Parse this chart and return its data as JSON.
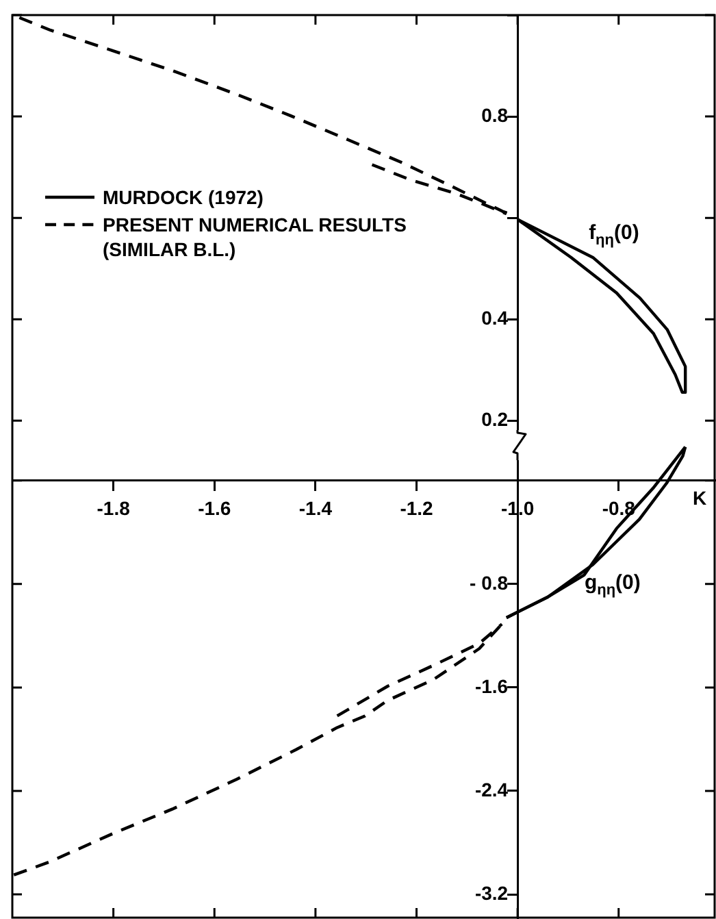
{
  "chart_data": {
    "type": "line",
    "xlabel": "K",
    "xlim": [
      -2.0,
      -0.61
    ],
    "xticks": [
      -1.8,
      -1.6,
      -1.4,
      -1.2,
      {
        "value": -1.0,
        "label": "-1.0"
      },
      -0.8
    ],
    "ylim": [
      -0.78,
      1.0
    ],
    "yticks": [
      {
        "value": 0.2,
        "label": "0.2"
      },
      {
        "value": 0.4,
        "label": "0.4"
      },
      {
        "value": 0.6,
        "label": null
      },
      {
        "value": 0.8,
        "label": "0.8"
      },
      {
        "value": 1.0,
        "label": null
      }
    ],
    "y2lim": [
      -3.38,
      3.6
    ],
    "y2ticks": [
      {
        "value": 0,
        "label": null
      },
      {
        "value": -0.8,
        "label": "- 0.8"
      },
      -1.6,
      -2.4,
      -3.2
    ],
    "marker": "none",
    "legend": "top left",
    "series": [
      {
        "name": "MURDOCK (1972)",
        "color": "#000000",
        "line_style": "solid",
        "x": [
          -1.0,
          -0.851,
          -0.758,
          -0.704,
          -0.668,
          -0.668
        ],
        "values": [
          0.597,
          0.522,
          0.442,
          0.38,
          0.307,
          0.256
        ]
      },
      {
        "color": "#000000",
        "line_style": "solid",
        "x": [
          -1.0,
          -0.894,
          -0.804,
          -0.731,
          -0.688,
          -0.674,
          -0.668
        ],
        "values": [
          0.597,
          0.522,
          0.452,
          0.372,
          0.291,
          0.256,
          0.256
        ]
      },
      {
        "name": "PRESENT NUMERICAL RESULTS (SIMILAR B.L.)",
        "color": "#000000",
        "line_style": "dashed",
        "x": [
          -1.986,
          -1.924,
          -1.802,
          -1.682,
          -1.557,
          -1.448,
          -1.34,
          -1.231,
          -1.13,
          -1.03,
          -1.016
        ],
        "values": [
          0.995,
          0.97,
          0.93,
          0.89,
          0.844,
          0.801,
          0.756,
          0.71,
          0.662,
          0.613,
          0.608
        ]
      },
      {
        "color": "#000000",
        "line_style": "dashed",
        "x": [
          -1.288,
          -1.212,
          -1.122,
          -1.068,
          -1.022
        ],
        "values": [
          0.705,
          0.675,
          0.648,
          0.627,
          0.608
        ]
      },
      {
        "color": "#000000",
        "line_style": "dashed",
        "axis": "y2",
        "x": [
          -1.997,
          -1.927,
          -1.801,
          -1.683,
          -1.556,
          -1.438,
          -1.357,
          -1.302,
          -1.257,
          -1.167,
          -1.076,
          -1.031
        ],
        "values": [
          -3.05,
          -2.95,
          -2.73,
          -2.54,
          -2.31,
          -2.08,
          -1.91,
          -1.82,
          -1.7,
          -1.54,
          -1.3,
          -1.11
        ]
      },
      {
        "color": "#000000",
        "line_style": "dashed",
        "axis": "y2",
        "x": [
          -1.357,
          -1.257,
          -1.167,
          -1.076,
          -1.031
        ],
        "values": [
          -1.82,
          -1.59,
          -1.43,
          -1.26,
          -1.11
        ]
      },
      {
        "color": "#000000",
        "line_style": "solid",
        "axis": "y2",
        "x": [
          -1.022,
          -0.94,
          -0.868,
          -0.804,
          -0.732,
          -0.668
        ],
        "values": [
          -1.06,
          -0.9,
          -0.73,
          -0.37,
          -0.06,
          0.26
        ]
      },
      {
        "color": "#000000",
        "line_style": "solid",
        "axis": "y2",
        "x": [
          -1.022,
          -0.94,
          -0.851,
          -0.759,
          -0.705,
          -0.673,
          -0.668
        ],
        "values": [
          -1.06,
          -0.9,
          -0.65,
          -0.3,
          -0.02,
          0.19,
          0.26
        ]
      }
    ],
    "annotations": [
      "f$_{ηη}$(0)",
      "g$_{ηη}$(0)"
    ]
  }
}
